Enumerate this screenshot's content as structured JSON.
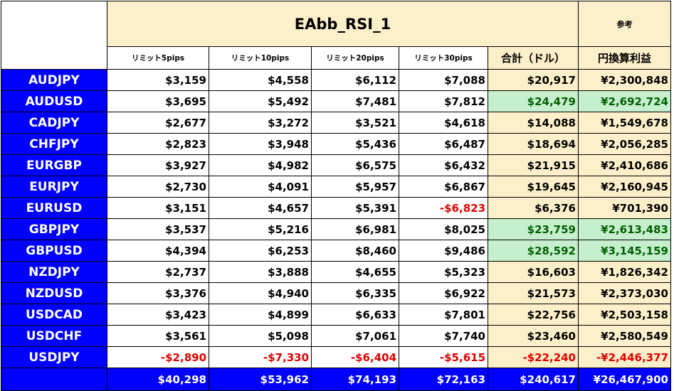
{
  "sheet": {
    "title": "EAbb_RSI_1",
    "reference_label": "参考",
    "columns": [
      "リミット5pips",
      "リミット10pips",
      "リミット20pips",
      "リミット30pips"
    ],
    "total_label": "合計（ドル）",
    "yen_label": "円換算利益",
    "rows": [
      {
        "pair": "AUDJPY",
        "v": [
          "$3,159",
          "$4,558",
          "$6,112",
          "$7,088"
        ],
        "total": "$20,917",
        "yen": "¥2,300,848",
        "hi": false,
        "neg": [
          false,
          false,
          false,
          false
        ],
        "tneg": false
      },
      {
        "pair": "AUDUSD",
        "v": [
          "$3,695",
          "$5,492",
          "$7,481",
          "$7,812"
        ],
        "total": "$24,479",
        "yen": "¥2,692,724",
        "hi": true,
        "neg": [
          false,
          false,
          false,
          false
        ],
        "tneg": false
      },
      {
        "pair": "CADJPY",
        "v": [
          "$2,677",
          "$3,272",
          "$3,521",
          "$4,618"
        ],
        "total": "$14,088",
        "yen": "¥1,549,678",
        "hi": false,
        "neg": [
          false,
          false,
          false,
          false
        ],
        "tneg": false
      },
      {
        "pair": "CHFJPY",
        "v": [
          "$2,823",
          "$3,948",
          "$5,436",
          "$6,487"
        ],
        "total": "$18,694",
        "yen": "¥2,056,285",
        "hi": false,
        "neg": [
          false,
          false,
          false,
          false
        ],
        "tneg": false
      },
      {
        "pair": "EURGBP",
        "v": [
          "$3,927",
          "$4,982",
          "$6,575",
          "$6,432"
        ],
        "total": "$21,915",
        "yen": "¥2,410,686",
        "hi": false,
        "neg": [
          false,
          false,
          false,
          false
        ],
        "tneg": false
      },
      {
        "pair": "EURJPY",
        "v": [
          "$2,730",
          "$4,091",
          "$5,957",
          "$6,867"
        ],
        "total": "$19,645",
        "yen": "¥2,160,945",
        "hi": false,
        "neg": [
          false,
          false,
          false,
          false
        ],
        "tneg": false
      },
      {
        "pair": "EURUSD",
        "v": [
          "$3,151",
          "$4,657",
          "$5,391",
          "-$6,823"
        ],
        "total": "$6,376",
        "yen": "¥701,390",
        "hi": false,
        "neg": [
          false,
          false,
          false,
          true
        ],
        "tneg": false
      },
      {
        "pair": "GBPJPY",
        "v": [
          "$3,537",
          "$5,216",
          "$6,981",
          "$8,025"
        ],
        "total": "$23,759",
        "yen": "¥2,613,483",
        "hi": true,
        "neg": [
          false,
          false,
          false,
          false
        ],
        "tneg": false
      },
      {
        "pair": "GBPUSD",
        "v": [
          "$4,394",
          "$6,253",
          "$8,460",
          "$9,486"
        ],
        "total": "$28,592",
        "yen": "¥3,145,159",
        "hi": true,
        "neg": [
          false,
          false,
          false,
          false
        ],
        "tneg": false
      },
      {
        "pair": "NZDJPY",
        "v": [
          "$2,737",
          "$3,888",
          "$4,655",
          "$5,323"
        ],
        "total": "$16,603",
        "yen": "¥1,826,342",
        "hi": false,
        "neg": [
          false,
          false,
          false,
          false
        ],
        "tneg": false
      },
      {
        "pair": "NZDUSD",
        "v": [
          "$3,376",
          "$4,940",
          "$6,335",
          "$6,922"
        ],
        "total": "$21,573",
        "yen": "¥2,373,030",
        "hi": false,
        "neg": [
          false,
          false,
          false,
          false
        ],
        "tneg": false
      },
      {
        "pair": "USDCAD",
        "v": [
          "$3,423",
          "$4,899",
          "$6,633",
          "$7,801"
        ],
        "total": "$22,756",
        "yen": "¥2,503,158",
        "hi": false,
        "neg": [
          false,
          false,
          false,
          false
        ],
        "tneg": false
      },
      {
        "pair": "USDCHF",
        "v": [
          "$3,561",
          "$5,098",
          "$7,061",
          "$7,740"
        ],
        "total": "$23,460",
        "yen": "¥2,580,549",
        "hi": false,
        "neg": [
          false,
          false,
          false,
          false
        ],
        "tneg": false
      },
      {
        "pair": "USDJPY",
        "v": [
          "-$2,890",
          "-$7,330",
          "-$6,404",
          "-$5,615"
        ],
        "total": "-$22,240",
        "yen": "-¥2,446,377",
        "hi": false,
        "neg": [
          true,
          true,
          true,
          true
        ],
        "tneg": true
      }
    ],
    "footer": {
      "v": [
        "$40,298",
        "$53,962",
        "$74,193",
        "$72,163"
      ],
      "total": "$240,617",
      "yen": "¥26,467,900"
    }
  },
  "colors": {
    "pair_bg": "#0000ff",
    "header_bg": "#fdefc9",
    "highlight_bg": "#c6efce",
    "highlight_text": "#006100",
    "negative_text": "#e00000"
  }
}
